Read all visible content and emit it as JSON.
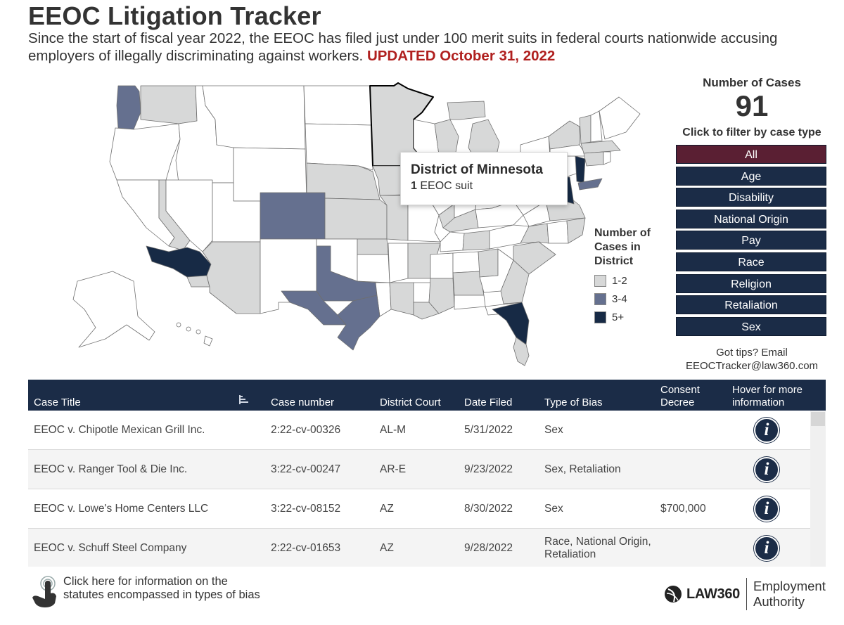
{
  "header": {
    "title": "EEOC Litigation Tracker",
    "subtitle": "Since the start of fiscal year 2022, the EEOC has filed just under 100 merit suits in federal courts nationwide accusing employers of illegally discriminating against workers.",
    "updated": "UPDATED October 31, 2022"
  },
  "tooltip": {
    "title": "District of Minnesota",
    "count": "1",
    "suffix": "EEOC suit"
  },
  "legend": {
    "title": "Number of Cases in District",
    "items": [
      {
        "label": "1-2",
        "color": "#d7d8d8"
      },
      {
        "label": "3-4",
        "color": "#65708f"
      },
      {
        "label": "5+",
        "color": "#172a45"
      }
    ]
  },
  "panel": {
    "count_label": "Number of Cases",
    "count_value": "91",
    "filter_label": "Click to filter by case type",
    "filters": [
      "All",
      "Age",
      "Disability",
      "National Origin",
      "Pay",
      "Race",
      "Religion",
      "Retaliation",
      "Sex"
    ],
    "active_filter": "All",
    "tips_line1": "Got tips? Email",
    "tips_line2": "EEOCTracker@law360.com"
  },
  "table": {
    "columns": {
      "title": "Case Title",
      "case_number": "Case number",
      "court": "District Court",
      "date": "Date Filed",
      "bias": "Type of Bias",
      "consent": "Consent Decree",
      "hover": "Hover for more information"
    },
    "rows": [
      {
        "title": "EEOC v. Chipotle Mexican Grill Inc.",
        "case_number": "2:22-cv-00326",
        "court": "AL-M",
        "date": "5/31/2022",
        "bias": "Sex",
        "consent": ""
      },
      {
        "title": "EEOC v. Ranger Tool & Die Inc.",
        "case_number": "3:22-cv-00247",
        "court": "AR-E",
        "date": "9/23/2022",
        "bias": "Sex, Retaliation",
        "consent": ""
      },
      {
        "title": "EEOC v. Lowe's Home Centers LLC",
        "case_number": "3:22-cv-08152",
        "court": "AZ",
        "date": "8/30/2022",
        "bias": "Sex",
        "consent": "$700,000"
      },
      {
        "title": "EEOC v. Schuff Steel Company",
        "case_number": "2:22-cv-01653",
        "court": "AZ",
        "date": "9/28/2022",
        "bias": "Race, National Origin, Retaliation",
        "consent": ""
      }
    ],
    "info_glyph": "i"
  },
  "footer": {
    "link_line1": "Click here for information on the",
    "link_line2": "statutes encompassed in types of bias",
    "brand": "LAW360",
    "section_line1": "Employment",
    "section_line2": "Authority"
  }
}
